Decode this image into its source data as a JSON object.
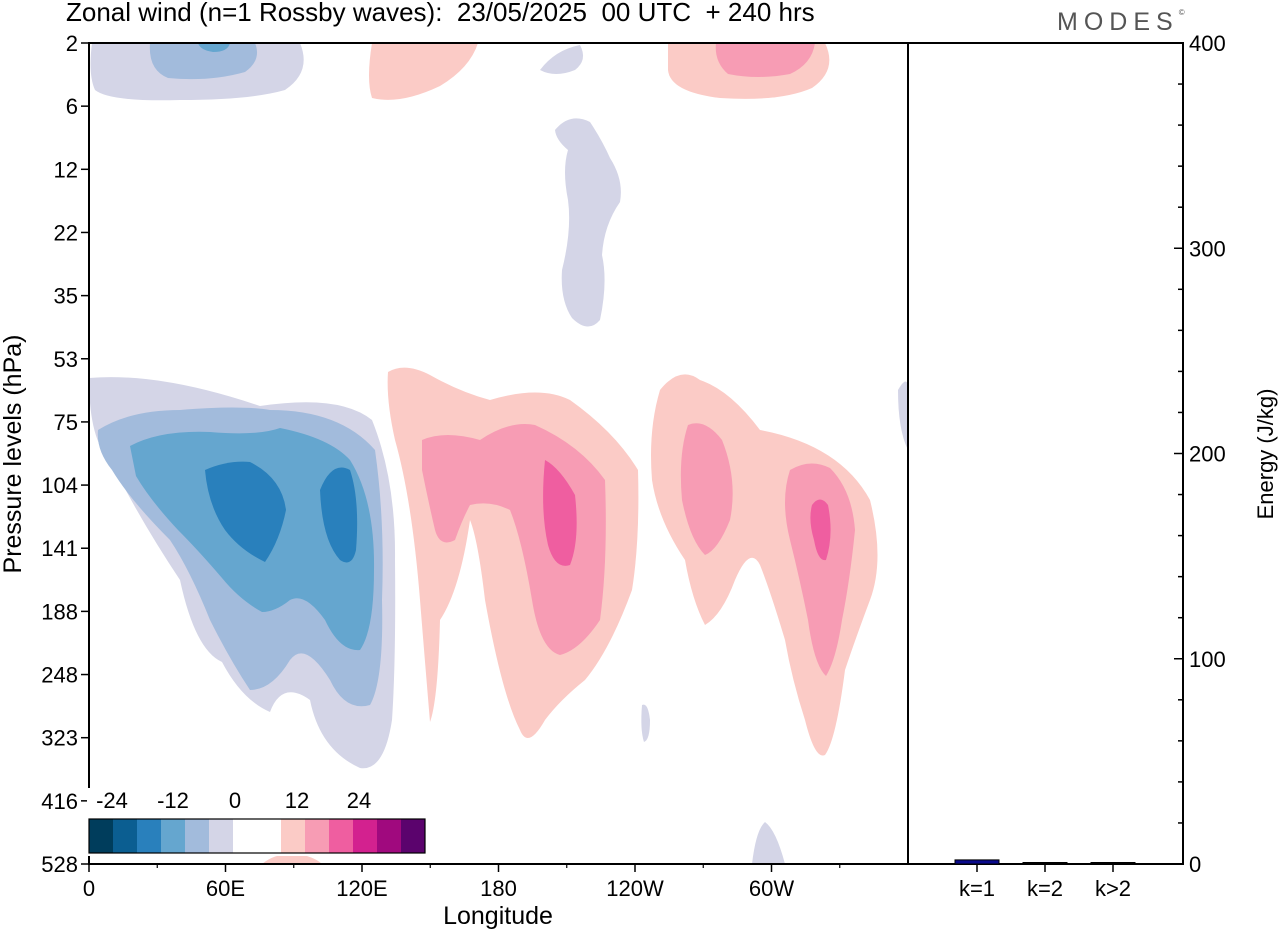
{
  "title": "Zonal wind (n=1 Rossby waves):  23/05/2025  00 UTC  + 240 hrs",
  "logo": "MODES",
  "logo_mark": "©",
  "colors": {
    "neg": [
      "#003d5c",
      "#0b5e91",
      "#2980bc",
      "#65a6cf",
      "#a2bbdc",
      "#d4d5e7"
    ],
    "zero": "#ffffff",
    "pos": [
      "#fbcbc6",
      "#f79cb4",
      "#ef5ea0",
      "#d3218f",
      "#a0097e",
      "#5b036d"
    ],
    "bar": "#0a0a8c"
  },
  "chart_data": [
    {
      "type": "heatmap",
      "title": "Zonal wind (n=1 Rossby waves)",
      "xlabel": "Longitude",
      "ylabel": "Pressure levels (hPa)",
      "x_ticks": [
        "0",
        "60E",
        "120E",
        "180",
        "120W",
        "60W"
      ],
      "x_tick_degrees": [
        0,
        60,
        120,
        180,
        240,
        300
      ],
      "x_range_degrees": [
        0,
        360
      ],
      "y_ticks": [
        "2",
        "6",
        "12",
        "22",
        "35",
        "53",
        "75",
        "104",
        "141",
        "188",
        "248",
        "323",
        "416",
        "528"
      ],
      "colorbar": {
        "tick_labels": [
          "-24",
          "-12",
          "0",
          "12",
          "24"
        ],
        "levels": [
          -30,
          -25,
          -20,
          -15,
          -10,
          -5,
          5,
          10,
          15,
          20,
          25,
          30
        ]
      },
      "features": [
        {
          "sign": "neg",
          "max_level": 2,
          "lon_range": [
            0,
            120
          ],
          "level_range": [
            2,
            6
          ]
        },
        {
          "sign": "pos",
          "max_level": 1,
          "lon_range": [
            125,
            165
          ],
          "level_range": [
            2,
            6
          ]
        },
        {
          "sign": "pos",
          "max_level": 2,
          "lon_range": [
            255,
            325
          ],
          "level_range": [
            2,
            6
          ]
        },
        {
          "sign": "neg",
          "max_level": 1,
          "lon_range": [
            206,
            235
          ],
          "level_range": [
            8,
            35
          ]
        },
        {
          "sign": "neg",
          "max_level": 5,
          "lon_range": [
            0,
            135
          ],
          "level_range": [
            53,
            323
          ]
        },
        {
          "sign": "pos",
          "max_level": 4,
          "lon_range": [
            130,
            240
          ],
          "level_range": [
            53,
            323
          ]
        },
        {
          "sign": "pos",
          "max_level": 4,
          "lon_range": [
            248,
            345
          ],
          "level_range": [
            53,
            323
          ]
        }
      ]
    },
    {
      "type": "bar",
      "ylabel": "Energy (J/kg)",
      "categories": [
        "k=1",
        "k=2",
        "k>2"
      ],
      "values": [
        2,
        0.5,
        0.4
      ],
      "ylim": [
        0,
        400
      ],
      "y_ticks": [
        "0",
        "100",
        "200",
        "300",
        "400"
      ]
    }
  ]
}
